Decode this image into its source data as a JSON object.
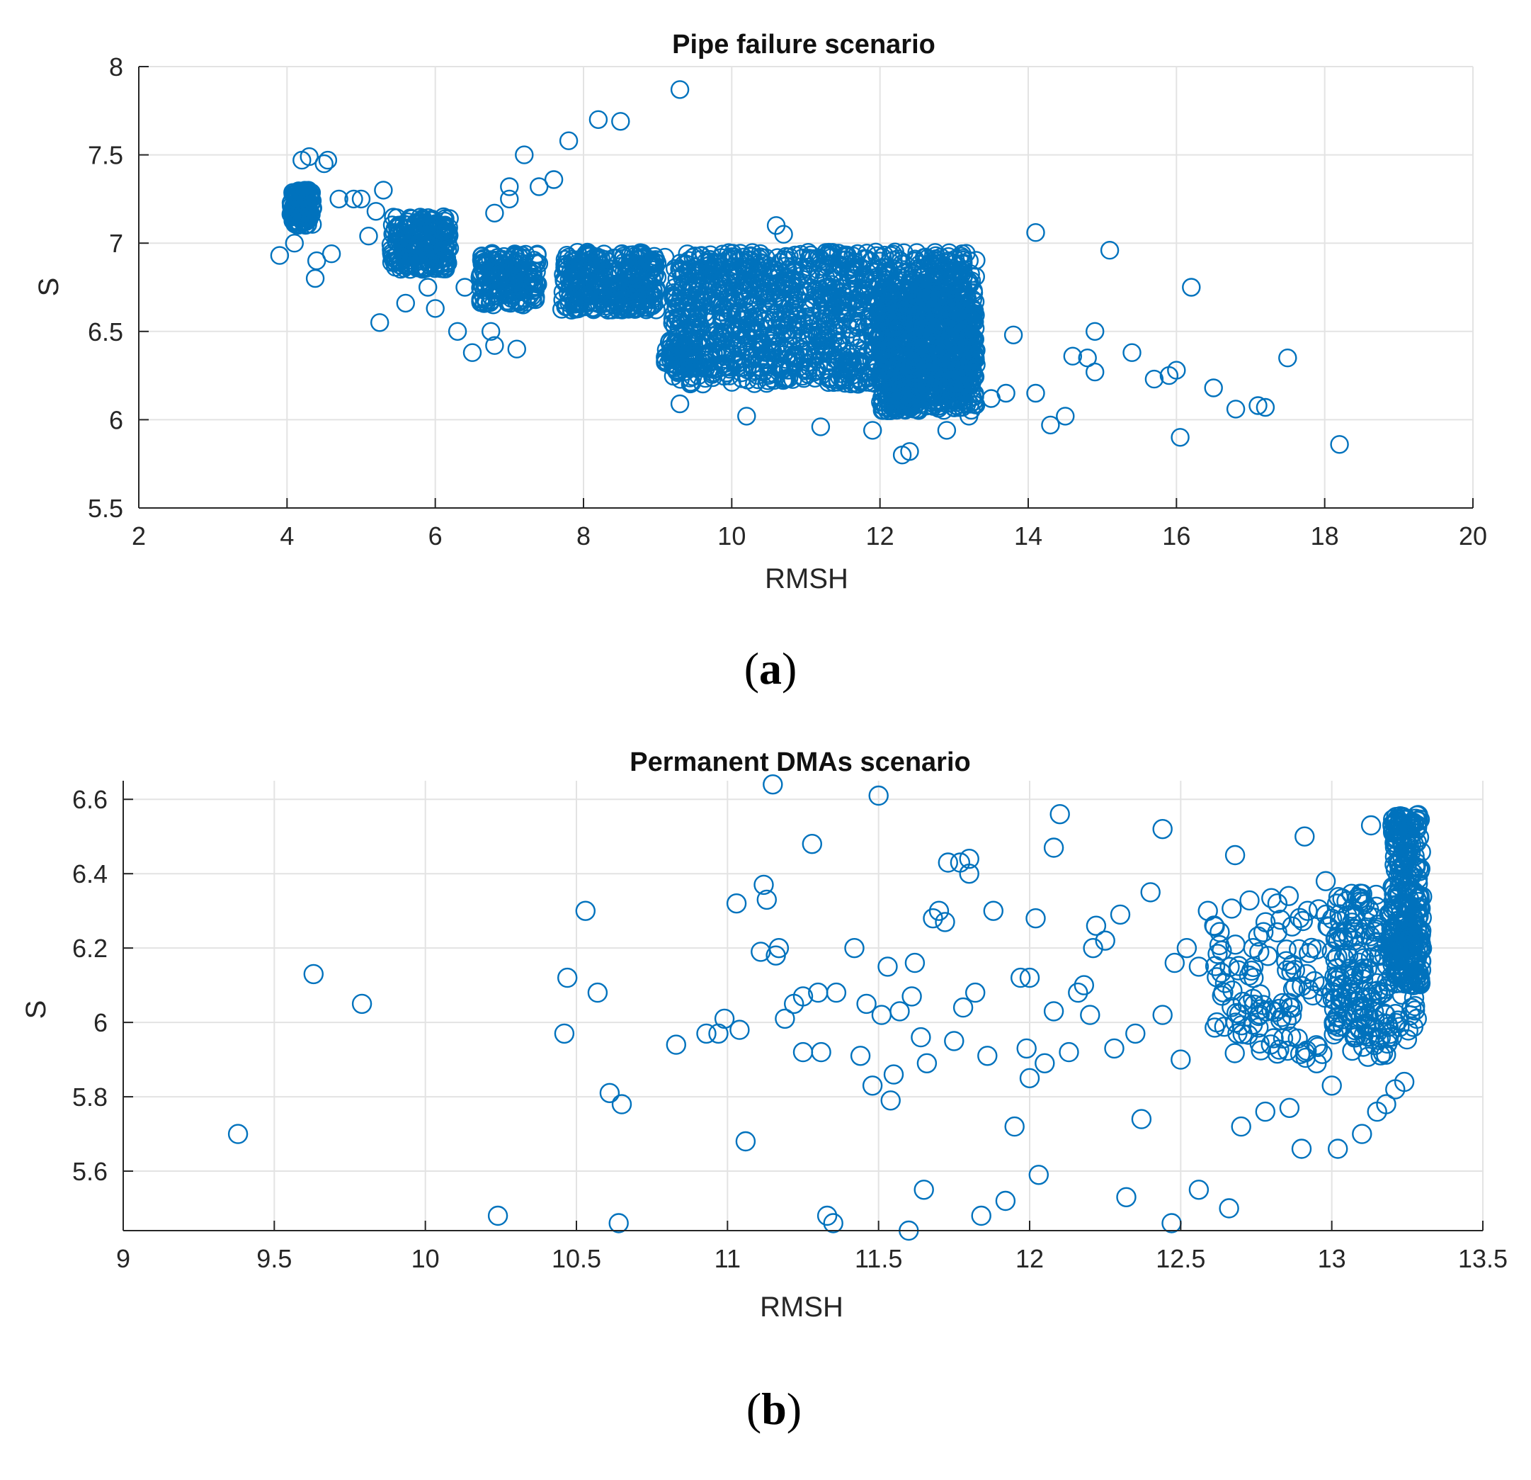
{
  "marker_color": "#0072BD",
  "chart_data": [
    {
      "type": "scatter",
      "panel": "a",
      "caption": "(a)",
      "title": "Pipe failure scenario",
      "xlabel": "RMSH",
      "ylabel": "S",
      "xlim": [
        2,
        20
      ],
      "ylim": [
        5.5,
        8
      ],
      "xticks": [
        2,
        4,
        6,
        8,
        10,
        12,
        14,
        16,
        18,
        20
      ],
      "yticks": [
        5.5,
        6,
        6.5,
        7,
        7.5,
        8
      ],
      "xtick_labels": [
        "2",
        "4",
        "6",
        "8",
        "10",
        "12",
        "14",
        "16",
        "18",
        "20"
      ],
      "ytick_labels": [
        "5.5",
        "6",
        "6.5",
        "7",
        "7.5",
        "8"
      ],
      "grid": true,
      "clusters": [
        {
          "x": [
            4.05,
            4.35
          ],
          "y": [
            7.1,
            7.3
          ],
          "n": 140
        },
        {
          "x": [
            5.4,
            6.2
          ],
          "y": [
            6.85,
            7.15
          ],
          "n": 220
        },
        {
          "x": [
            6.6,
            7.4
          ],
          "y": [
            6.65,
            6.95
          ],
          "n": 180
        },
        {
          "x": [
            7.7,
            9.0
          ],
          "y": [
            6.62,
            6.95
          ],
          "n": 320
        },
        {
          "x": [
            9.2,
            13.3
          ],
          "y": [
            6.2,
            6.95
          ],
          "n": 1300
        },
        {
          "x": [
            12.0,
            13.3
          ],
          "y": [
            6.05,
            6.75
          ],
          "n": 650
        },
        {
          "x": [
            9.1,
            9.5
          ],
          "y": [
            6.28,
            6.45
          ],
          "n": 60
        },
        {
          "x": [
            12.1,
            12.5
          ],
          "y": [
            6.05,
            6.2
          ],
          "n": 80
        }
      ],
      "x": [
        3.9,
        4.1,
        4.38,
        4.4,
        4.6,
        4.7,
        4.9,
        5.0,
        5.1,
        5.2,
        5.25,
        5.3,
        5.6,
        6.0,
        6.3,
        6.5,
        6.75,
        6.8,
        7.1,
        7.0,
        7.0,
        7.2,
        7.4,
        7.6,
        7.8,
        8.2,
        8.5,
        9.3,
        6.8,
        5.9,
        4.2,
        4.3,
        4.5,
        4.55,
        10.2,
        11.2,
        11.9,
        12.3,
        12.4,
        12.9,
        13.2,
        13.5,
        13.7,
        13.8,
        14.1,
        14.3,
        14.5,
        14.6,
        14.8,
        14.9,
        14.9,
        15.1,
        15.4,
        15.7,
        15.9,
        16.0,
        16.05,
        16.2,
        16.5,
        16.8,
        17.1,
        17.2,
        17.5,
        18.2,
        14.1,
        10.6,
        10.7,
        9.3,
        9.1,
        6.4,
        6.0
      ],
      "y": [
        6.93,
        7.0,
        6.8,
        6.9,
        6.94,
        7.25,
        7.25,
        7.25,
        7.04,
        7.18,
        6.55,
        7.3,
        6.66,
        6.63,
        6.5,
        6.38,
        6.5,
        6.42,
        6.4,
        7.25,
        7.32,
        7.5,
        7.32,
        7.36,
        7.58,
        7.7,
        7.69,
        7.87,
        7.17,
        6.75,
        7.47,
        7.49,
        7.45,
        7.47,
        6.02,
        5.96,
        5.94,
        5.8,
        5.82,
        5.94,
        6.02,
        6.12,
        6.15,
        6.48,
        6.15,
        5.97,
        6.02,
        6.36,
        6.35,
        6.27,
        6.5,
        6.96,
        6.38,
        6.23,
        6.25,
        6.28,
        5.9,
        6.75,
        6.18,
        6.06,
        6.08,
        6.07,
        6.35,
        5.86,
        7.06,
        7.1,
        7.05,
        6.09,
        6.92,
        6.75,
        6.9
      ]
    },
    {
      "type": "scatter",
      "panel": "b",
      "caption": "(b)",
      "title": "Permanent DMAs scenario",
      "xlabel": "RMSH",
      "ylabel": "S",
      "xlim": [
        9,
        13.5
      ],
      "ylim": [
        5.44,
        6.65
      ],
      "xticks": [
        9,
        9.5,
        10,
        10.5,
        11,
        11.5,
        12,
        12.5,
        13,
        13.5
      ],
      "yticks": [
        5.6,
        5.8,
        6,
        6.2,
        6.4,
        6.6
      ],
      "xtick_labels": [
        "9",
        "9.5",
        "10",
        "10.5",
        "11",
        "11.5",
        "12",
        "12.5",
        "13",
        "13.5"
      ],
      "ytick_labels": [
        "5.6",
        "5.8",
        "6",
        "6.2",
        "6.4",
        "6.6"
      ],
      "grid": true,
      "clusters": [
        {
          "x": [
            13.2,
            13.3
          ],
          "y": [
            6.1,
            6.56
          ],
          "n": 260
        },
        {
          "x": [
            13.0,
            13.3
          ],
          "y": [
            5.95,
            6.35
          ],
          "n": 160
        },
        {
          "x": [
            12.6,
            13.2
          ],
          "y": [
            5.9,
            6.35
          ],
          "n": 170
        }
      ],
      "x": [
        9.38,
        9.63,
        9.79,
        10.24,
        10.46,
        10.47,
        10.53,
        10.57,
        10.61,
        10.64,
        10.65,
        10.83,
        10.93,
        10.97,
        10.99,
        11.03,
        11.04,
        11.06,
        11.11,
        11.12,
        11.13,
        11.15,
        11.16,
        11.17,
        11.19,
        11.22,
        11.25,
        11.28,
        11.3,
        11.31,
        11.33,
        11.35,
        11.36,
        11.42,
        11.44,
        11.46,
        11.48,
        11.5,
        11.51,
        11.53,
        11.54,
        11.55,
        11.57,
        11.6,
        11.61,
        11.62,
        11.64,
        11.66,
        11.68,
        11.7,
        11.72,
        11.73,
        11.75,
        11.77,
        11.78,
        11.8,
        11.82,
        11.84,
        11.86,
        11.88,
        11.92,
        11.95,
        11.97,
        11.99,
        12.0,
        12.02,
        12.03,
        12.05,
        12.08,
        12.1,
        12.13,
        12.16,
        12.18,
        12.2,
        12.22,
        12.25,
        12.28,
        12.3,
        12.32,
        12.35,
        12.37,
        12.4,
        12.44,
        12.47,
        12.48,
        12.5,
        12.52,
        12.56,
        12.59,
        12.62,
        12.66,
        12.7,
        12.74,
        12.78,
        12.82,
        12.86,
        12.9,
        12.92,
        12.95,
        12.98,
        13.0,
        13.02,
        13.05,
        13.08,
        13.1,
        13.13,
        13.15,
        13.18,
        13.21,
        13.24,
        12.44,
        11.8,
        11.65,
        12.08,
        12.56,
        12.21,
        11.25,
        12.0,
        12.68,
        12.91
      ],
      "y": [
        5.7,
        6.13,
        6.05,
        5.48,
        5.97,
        6.12,
        6.3,
        6.08,
        5.81,
        5.46,
        5.78,
        5.94,
        5.97,
        5.97,
        6.01,
        6.32,
        5.98,
        5.68,
        6.19,
        6.37,
        6.33,
        6.64,
        6.18,
        6.2,
        6.01,
        6.05,
        6.07,
        6.48,
        6.08,
        5.92,
        5.48,
        5.46,
        6.08,
        6.2,
        5.91,
        6.05,
        5.83,
        6.61,
        6.02,
        6.15,
        5.79,
        5.86,
        6.03,
        5.44,
        6.07,
        6.16,
        5.96,
        5.89,
        6.28,
        6.3,
        6.27,
        6.43,
        5.95,
        6.43,
        6.04,
        6.4,
        6.08,
        5.48,
        5.91,
        6.3,
        5.52,
        5.72,
        6.12,
        5.93,
        6.12,
        6.28,
        5.59,
        5.89,
        6.03,
        6.56,
        5.92,
        6.08,
        6.1,
        6.02,
        6.26,
        6.22,
        5.93,
        6.29,
        5.53,
        5.97,
        5.74,
        6.35,
        6.02,
        5.46,
        6.16,
        5.9,
        6.2,
        5.55,
        6.3,
        6.0,
        5.5,
        5.72,
        6.2,
        5.76,
        6.32,
        5.77,
        5.66,
        6.3,
        5.89,
        6.38,
        5.83,
        5.66,
        6.02,
        5.96,
        5.7,
        6.53,
        5.76,
        5.78,
        5.82,
        5.84,
        6.52,
        6.44,
        5.55,
        6.47,
        6.15,
        6.2,
        5.92,
        5.85,
        6.45,
        6.5
      ]
    }
  ]
}
